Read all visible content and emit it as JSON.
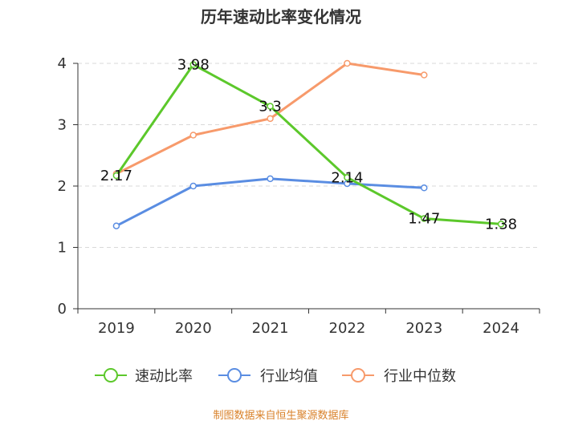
{
  "colors": {
    "speed_ratio": "#5cc82b",
    "industry_avg": "#5a8de2",
    "industry_median": "#f79a6b",
    "grid": "#d9d9d9",
    "axis": "#333333",
    "footer": "#d9822b"
  },
  "chart_data": {
    "type": "line",
    "title": "历年速动比率变化情况",
    "categories": [
      "2019",
      "2020",
      "2021",
      "2022",
      "2023",
      "2024"
    ],
    "ylim": [
      0,
      4
    ],
    "yticks": [
      "0",
      "1",
      "2",
      "3",
      "4"
    ],
    "grid": true,
    "legend_position": "bottom",
    "series": [
      {
        "name": "速动比率",
        "values": [
          2.17,
          3.98,
          3.3,
          2.14,
          1.47,
          1.38
        ],
        "labels": [
          "2.17",
          "3.98",
          "3.3",
          "2.14",
          "1.47",
          "1.38"
        ]
      },
      {
        "name": "行业均值",
        "values": [
          1.35,
          2.0,
          2.12,
          2.04,
          1.97,
          null
        ]
      },
      {
        "name": "行业中位数",
        "values": [
          2.2,
          2.83,
          3.1,
          4.0,
          3.81,
          null
        ]
      }
    ]
  },
  "footer": "制图数据来自恒生聚源数据库"
}
